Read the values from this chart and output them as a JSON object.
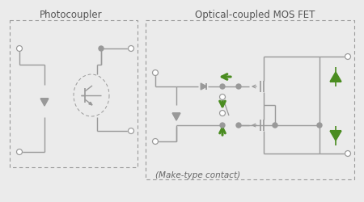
{
  "bg_color": "#ebebeb",
  "gray": "#999999",
  "gray_dark": "#777777",
  "green": "#4a8c20",
  "title1": "Photocoupler",
  "title2": "Optical-coupled MOS FET",
  "subtitle": "(Make-type contact)",
  "title_fontsize": 8.5,
  "subtitle_fontsize": 7.5
}
